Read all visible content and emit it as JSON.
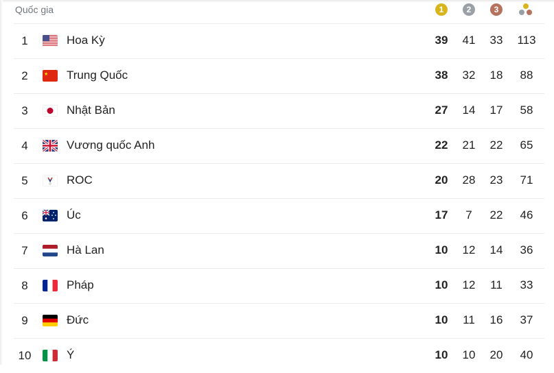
{
  "header": {
    "country_label": "Quốc gia",
    "gold_label": "1",
    "silver_label": "2",
    "bronze_label": "3",
    "total_icon": "medals-total-icon"
  },
  "colors": {
    "gold": "#d9b51d",
    "silver": "#9aa0a6",
    "bronze": "#b5725e"
  },
  "rows": [
    {
      "rank": "1",
      "name": "Hoa Kỳ",
      "flag": "us",
      "gold": "39",
      "silver": "41",
      "bronze": "33",
      "total": "113"
    },
    {
      "rank": "2",
      "name": "Trung Quốc",
      "flag": "cn",
      "gold": "38",
      "silver": "32",
      "bronze": "18",
      "total": "88"
    },
    {
      "rank": "3",
      "name": "Nhật Bản",
      "flag": "jp",
      "gold": "27",
      "silver": "14",
      "bronze": "17",
      "total": "58"
    },
    {
      "rank": "4",
      "name": "Vương quốc Anh",
      "flag": "gb",
      "gold": "22",
      "silver": "21",
      "bronze": "22",
      "total": "65"
    },
    {
      "rank": "5",
      "name": "ROC",
      "flag": "roc",
      "gold": "20",
      "silver": "28",
      "bronze": "23",
      "total": "71"
    },
    {
      "rank": "6",
      "name": "Úc",
      "flag": "au",
      "gold": "17",
      "silver": "7",
      "bronze": "22",
      "total": "46"
    },
    {
      "rank": "7",
      "name": "Hà Lan",
      "flag": "nl",
      "gold": "10",
      "silver": "12",
      "bronze": "14",
      "total": "36"
    },
    {
      "rank": "8",
      "name": "Pháp",
      "flag": "fr",
      "gold": "10",
      "silver": "12",
      "bronze": "11",
      "total": "33"
    },
    {
      "rank": "9",
      "name": "Đức",
      "flag": "de",
      "gold": "10",
      "silver": "11",
      "bronze": "16",
      "total": "37"
    },
    {
      "rank": "10",
      "name": "Ý",
      "flag": "it",
      "gold": "10",
      "silver": "10",
      "bronze": "20",
      "total": "40"
    }
  ]
}
